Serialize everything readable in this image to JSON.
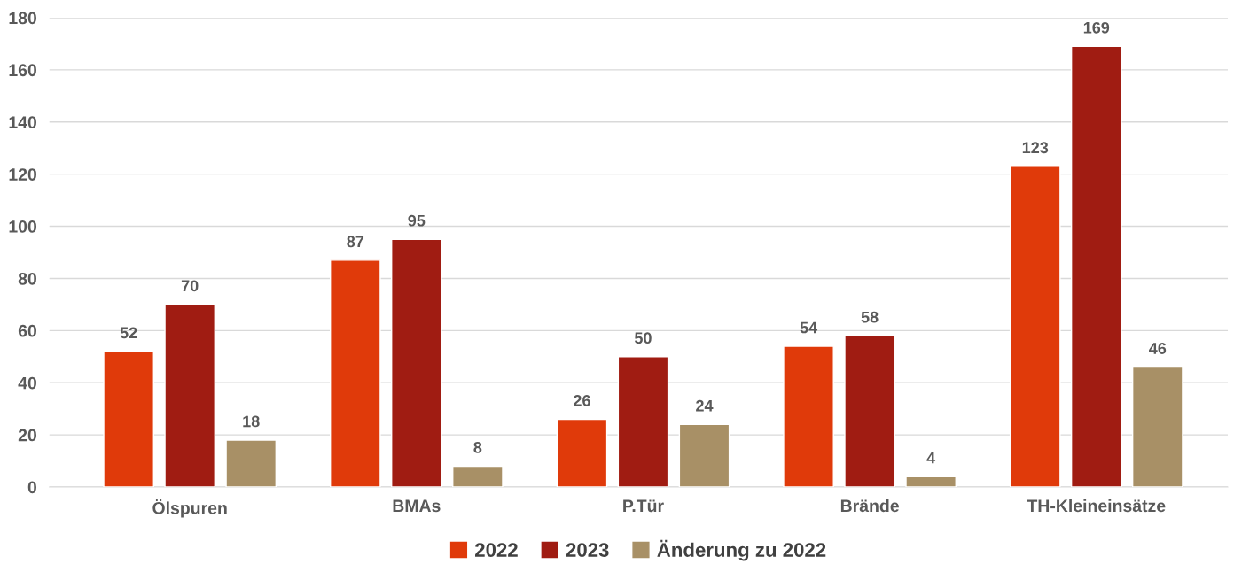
{
  "chart_data": {
    "type": "bar",
    "categories": [
      "Ölspuren",
      "BMAs",
      "P.Tür",
      "Brände",
      "TH-Kleineinsätze"
    ],
    "series": [
      {
        "name": "2022",
        "color": "#e03a0a",
        "values": [
          52,
          87,
          26,
          54,
          123
        ]
      },
      {
        "name": "2023",
        "color": "#a01c12",
        "values": [
          70,
          95,
          50,
          58,
          169
        ]
      },
      {
        "name": "Änderung zu 2022",
        "color": "#a89066",
        "values": [
          18,
          8,
          24,
          4,
          46
        ]
      }
    ],
    "ylim": [
      0,
      180
    ],
    "yticks": [
      0,
      20,
      40,
      60,
      80,
      100,
      120,
      140,
      160,
      180
    ],
    "grid": "y",
    "legend": "bottom",
    "data_labels": true
  }
}
